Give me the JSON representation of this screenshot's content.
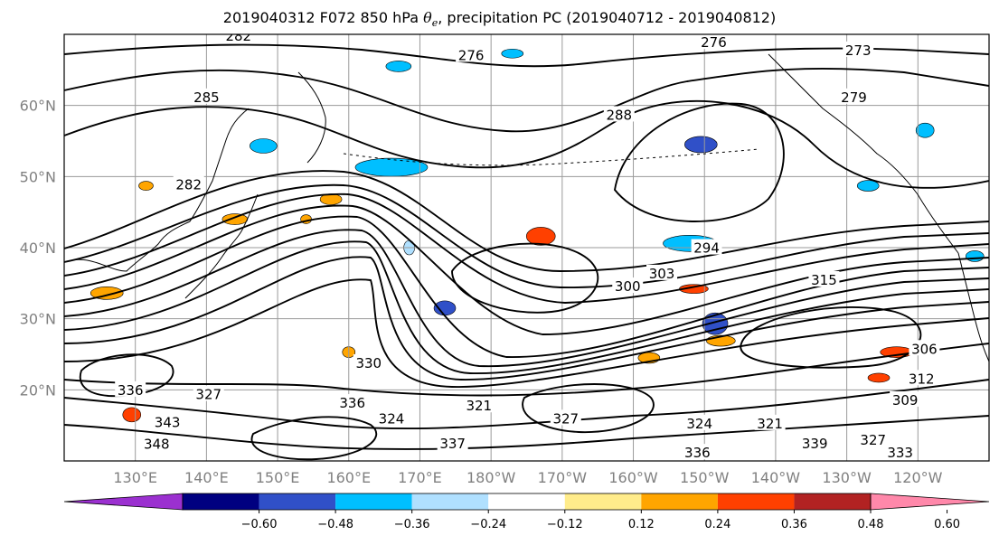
{
  "title": {
    "prefix": "2019040312 F072 850 hPa ",
    "symbol": "θ",
    "subscript": "e",
    "suffix": ", precipitation PC (2019040712 - 2019040812)"
  },
  "map": {
    "lat_labels": [
      "60°N",
      "50°N",
      "40°N",
      "30°N",
      "20°N"
    ],
    "lat_values": [
      60,
      50,
      40,
      30,
      20
    ],
    "lon_labels": [
      "130°E",
      "140°E",
      "150°E",
      "160°E",
      "170°E",
      "180°W",
      "170°W",
      "160°W",
      "150°W",
      "140°W",
      "130°W",
      "120°W"
    ],
    "lon_values": [
      130,
      140,
      150,
      160,
      170,
      180,
      190,
      200,
      210,
      220,
      230,
      240
    ],
    "lat_range": [
      10,
      70
    ],
    "lon_range": [
      120,
      250
    ],
    "contour_labels": [
      {
        "text": "282",
        "lon": 144.5,
        "lat": 69.6
      },
      {
        "text": "276",
        "lon": 177.2,
        "lat": 66.9
      },
      {
        "text": "276",
        "lon": 211.3,
        "lat": 68.7
      },
      {
        "text": "273",
        "lon": 231.6,
        "lat": 67.6
      },
      {
        "text": "285",
        "lon": 140.0,
        "lat": 61.0
      },
      {
        "text": "282",
        "lon": 137.5,
        "lat": 48.7
      },
      {
        "text": "279",
        "lon": 231.0,
        "lat": 61.0
      },
      {
        "text": "288",
        "lon": 198.0,
        "lat": 58.5
      },
      {
        "text": "294",
        "lon": 210.3,
        "lat": 39.8
      },
      {
        "text": "300",
        "lon": 199.2,
        "lat": 34.4
      },
      {
        "text": "303",
        "lon": 204.0,
        "lat": 36.2
      },
      {
        "text": "315",
        "lon": 226.8,
        "lat": 35.3
      },
      {
        "text": "330",
        "lon": 162.8,
        "lat": 23.6
      },
      {
        "text": "327",
        "lon": 140.3,
        "lat": 19.2
      },
      {
        "text": "336",
        "lon": 129.3,
        "lat": 19.8
      },
      {
        "text": "336",
        "lon": 160.5,
        "lat": 18.0
      },
      {
        "text": "324",
        "lon": 166.0,
        "lat": 15.8
      },
      {
        "text": "321",
        "lon": 178.3,
        "lat": 17.6
      },
      {
        "text": "327",
        "lon": 190.5,
        "lat": 15.8
      },
      {
        "text": "343",
        "lon": 134.5,
        "lat": 15.3
      },
      {
        "text": "348",
        "lon": 133.0,
        "lat": 12.2
      },
      {
        "text": "337",
        "lon": 174.6,
        "lat": 12.3
      },
      {
        "text": "324",
        "lon": 209.3,
        "lat": 15.1
      },
      {
        "text": "321",
        "lon": 219.2,
        "lat": 15.1
      },
      {
        "text": "336",
        "lon": 209.0,
        "lat": 11.0
      },
      {
        "text": "339",
        "lon": 225.5,
        "lat": 12.3
      },
      {
        "text": "327",
        "lon": 233.7,
        "lat": 12.8
      },
      {
        "text": "306",
        "lon": 240.9,
        "lat": 25.6
      },
      {
        "text": "312",
        "lon": 240.5,
        "lat": 21.4
      },
      {
        "text": "309",
        "lon": 238.2,
        "lat": 18.4
      },
      {
        "text": "333",
        "lon": 237.5,
        "lat": 11.0
      }
    ]
  },
  "colorbar": {
    "tick_labels": [
      "−0.60",
      "−0.48",
      "−0.36",
      "−0.24",
      "−0.12",
      "0.12",
      "0.24",
      "0.36",
      "0.48",
      "0.60"
    ],
    "colors": [
      "#9b30d0",
      "#000080",
      "#3050c8",
      "#00bfff",
      "#b0e0ff",
      "#ffffff",
      "#ffec8b",
      "#ffa500",
      "#ff4000",
      "#b22222",
      "#ff88aa"
    ]
  },
  "precip_patches": [
    {
      "lon": 209.5,
      "lat": 54.5,
      "rx": 18,
      "ry": 9,
      "value": -0.4
    },
    {
      "lon": 211.5,
      "lat": 29.3,
      "rx": 14,
      "ry": 12,
      "value": -0.4
    },
    {
      "lon": 208.0,
      "lat": 40.6,
      "rx": 30,
      "ry": 9,
      "value": -0.3
    },
    {
      "lon": 166.0,
      "lat": 51.3,
      "rx": 40,
      "ry": 10,
      "value": -0.3
    },
    {
      "lon": 148.0,
      "lat": 54.3,
      "rx": 15,
      "ry": 8,
      "value": -0.3
    },
    {
      "lon": 167.0,
      "lat": 65.5,
      "rx": 14,
      "ry": 6,
      "value": -0.3
    },
    {
      "lon": 173.5,
      "lat": 31.5,
      "rx": 12,
      "ry": 8,
      "value": -0.4
    },
    {
      "lon": 187.0,
      "lat": 41.6,
      "rx": 16,
      "ry": 10,
      "value": 0.4
    },
    {
      "lon": 129.5,
      "lat": 16.5,
      "rx": 10,
      "ry": 8,
      "value": 0.4
    },
    {
      "lon": 157.5,
      "lat": 46.8,
      "rx": 12,
      "ry": 6,
      "value": 0.3
    },
    {
      "lon": 144.0,
      "lat": 44.0,
      "rx": 14,
      "ry": 6,
      "value": 0.3
    },
    {
      "lon": 208.5,
      "lat": 34.2,
      "rx": 16,
      "ry": 5,
      "value": 0.4
    },
    {
      "lon": 234.5,
      "lat": 21.7,
      "rx": 12,
      "ry": 5,
      "value": 0.4
    },
    {
      "lon": 202.2,
      "lat": 24.5,
      "rx": 12,
      "ry": 6,
      "value": 0.3
    },
    {
      "lon": 212.3,
      "lat": 26.9,
      "rx": 16,
      "ry": 6,
      "value": 0.3
    },
    {
      "lon": 160.0,
      "lat": 25.3,
      "rx": 7,
      "ry": 6,
      "value": 0.3
    },
    {
      "lon": 237.0,
      "lat": 25.3,
      "rx": 18,
      "ry": 6,
      "value": 0.4
    },
    {
      "lon": 126.0,
      "lat": 33.6,
      "rx": 18,
      "ry": 7,
      "value": 0.3
    },
    {
      "lon": 154.0,
      "lat": 44.0,
      "rx": 6,
      "ry": 5,
      "value": 0.3
    },
    {
      "lon": 131.5,
      "lat": 48.7,
      "rx": 8,
      "ry": 5,
      "value": 0.3
    },
    {
      "lon": 241.0,
      "lat": 56.5,
      "rx": 10,
      "ry": 8,
      "value": -0.3
    },
    {
      "lon": 248.0,
      "lat": 38.8,
      "rx": 10,
      "ry": 6,
      "value": -0.3
    },
    {
      "lon": 233.0,
      "lat": 48.7,
      "rx": 12,
      "ry": 6,
      "value": -0.3
    },
    {
      "lon": 168.5,
      "lat": 40.0,
      "rx": 6,
      "ry": 8,
      "value": -0.2
    },
    {
      "lon": 183.0,
      "lat": 67.3,
      "rx": 12,
      "ry": 5,
      "value": -0.3
    }
  ]
}
